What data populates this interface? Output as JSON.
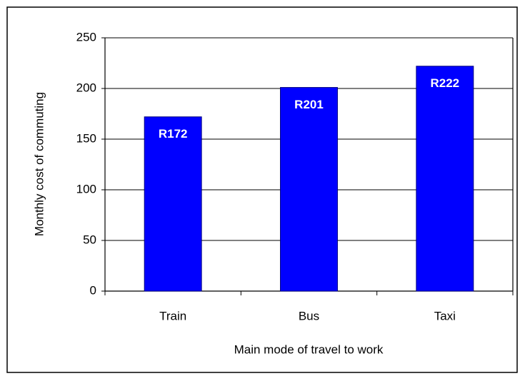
{
  "chart_data": {
    "type": "bar",
    "categories": [
      "Train",
      "Bus",
      "Taxi"
    ],
    "values": [
      172,
      201,
      222
    ],
    "value_labels": [
      "R172",
      "R201",
      "R222"
    ],
    "color": "#0000ff",
    "x_label": "Main mode of travel to work",
    "y_label": "Monthly cost of commuting",
    "ylim": [
      0,
      250
    ],
    "yticks": [
      0,
      50,
      100,
      150,
      200,
      250
    ],
    "grid": true
  }
}
